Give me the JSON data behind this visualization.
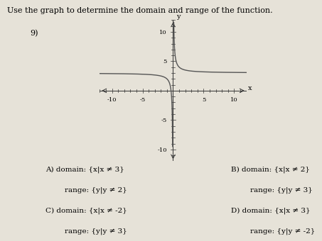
{
  "title_line1": "Use the graph to determine the domain and range of the function.",
  "problem_number": "9)",
  "background_color": "#e6e2d8",
  "curve_color": "#555555",
  "axis_color": "#333333",
  "xlim": [
    -12,
    12
  ],
  "ylim": [
    -12,
    12
  ],
  "xticks": [
    -10,
    -5,
    5,
    10
  ],
  "yticks": [
    -10,
    -5,
    5,
    10
  ],
  "xtick_labels": [
    "-10",
    "-5",
    "5",
    "10"
  ],
  "ytick_labels": [
    "-10",
    "-5",
    "5",
    "10"
  ],
  "xlabel": "x",
  "ylabel": "y",
  "vertical_asymptote": 0,
  "horizontal_asymptote": 3,
  "options": [
    [
      "A) domain: {x|x ≠ 3}",
      "range: {y|y ≠ 2}"
    ],
    [
      "C) domain: {x|x ≠ -2}",
      "range: {y|y ≠ 3}"
    ],
    [
      "B) domain: {x|x ≠ 2}",
      "range: {y|y ≠ 3}"
    ],
    [
      "D) domain: {x|x ≠ 3}",
      "range: {y|y ≠ -2}"
    ]
  ],
  "font_size_title": 8,
  "font_size_number": 8,
  "font_size_options": 7.5,
  "font_size_ticks": 6,
  "font_size_axis_label": 7
}
